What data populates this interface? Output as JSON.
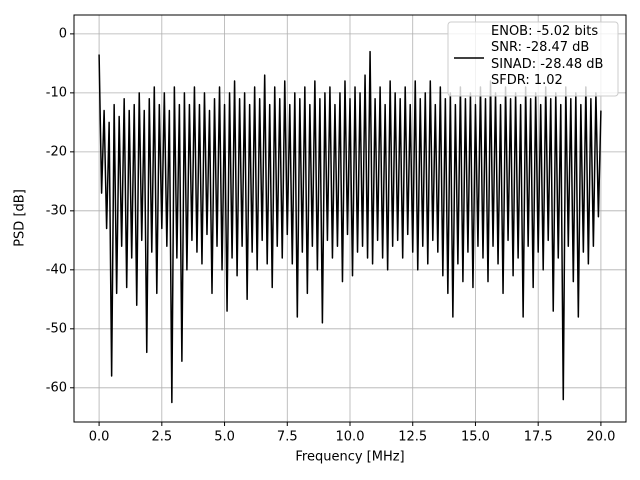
{
  "chart_data": {
    "type": "line",
    "xlabel": "Frequency [MHz]",
    "ylabel": "PSD [dB]",
    "xlim": [
      -1,
      21
    ],
    "ylim": [
      -65.8,
      3.2
    ],
    "xticks": [
      {
        "value": 0,
        "label": "0.0"
      },
      2.5,
      {
        "value": 5,
        "label": "5.0"
      },
      7.5,
      {
        "value": 10,
        "label": "10.0"
      },
      12.5,
      {
        "value": 15,
        "label": "15.0"
      },
      17.5,
      {
        "value": 20,
        "label": "20.0"
      }
    ],
    "yticks": [
      -60,
      -50,
      -40,
      -30,
      -20,
      -10,
      0
    ],
    "grid": true,
    "legend": "upper right",
    "x": [
      0,
      0.1,
      0.2,
      0.3,
      0.4,
      0.5,
      0.6,
      0.7,
      0.8,
      0.9,
      1,
      1.1,
      1.2,
      1.3,
      1.4,
      1.5,
      1.6,
      1.7,
      1.8,
      1.9,
      2,
      2.1,
      2.2,
      2.3,
      2.4,
      2.5,
      2.6,
      2.7,
      2.8,
      2.9,
      3,
      3.1,
      3.2,
      3.3,
      3.4,
      3.5,
      3.6,
      3.7,
      3.8,
      3.9,
      4,
      4.1,
      4.2,
      4.3,
      4.4,
      4.5,
      4.6,
      4.7,
      4.8,
      4.9,
      5,
      5.1,
      5.2,
      5.3,
      5.4,
      5.5,
      5.6,
      5.7,
      5.8,
      5.9,
      6,
      6.1,
      6.2,
      6.3,
      6.4,
      6.5,
      6.6,
      6.7,
      6.8,
      6.9,
      7,
      7.1,
      7.2,
      7.3,
      7.4,
      7.5,
      7.6,
      7.7,
      7.8,
      7.9,
      8,
      8.1,
      8.2,
      8.3,
      8.4,
      8.5,
      8.6,
      8.7,
      8.8,
      8.9,
      9,
      9.1,
      9.2,
      9.3,
      9.4,
      9.5,
      9.6,
      9.7,
      9.8,
      9.9,
      10,
      10.1,
      10.2,
      10.3,
      10.4,
      10.5,
      10.6,
      10.7,
      10.8,
      10.9,
      11,
      11.1,
      11.2,
      11.3,
      11.4,
      11.5,
      11.6,
      11.7,
      11.8,
      11.9,
      12,
      12.1,
      12.2,
      12.3,
      12.4,
      12.5,
      12.6,
      12.7,
      12.8,
      12.9,
      13,
      13.1,
      13.2,
      13.3,
      13.4,
      13.5,
      13.6,
      13.7,
      13.8,
      13.9,
      14,
      14.1,
      14.2,
      14.3,
      14.4,
      14.5,
      14.6,
      14.7,
      14.8,
      14.9,
      15,
      15.1,
      15.2,
      15.3,
      15.4,
      15.5,
      15.6,
      15.7,
      15.8,
      15.9,
      16,
      16.1,
      16.2,
      16.3,
      16.4,
      16.5,
      16.6,
      16.7,
      16.8,
      16.9,
      17,
      17.1,
      17.2,
      17.3,
      17.4,
      17.5,
      17.6,
      17.7,
      17.8,
      17.9,
      18,
      18.1,
      18.2,
      18.3,
      18.4,
      18.5,
      18.6,
      18.7,
      18.8,
      18.9,
      19,
      19.1,
      19.2,
      19.3,
      19.4,
      19.5,
      19.6,
      19.7,
      19.8,
      19.9,
      20
    ],
    "series": [
      {
        "name": "ENOB: -5.02 bits\nSNR: -28.47 dB\nSINAD: -28.48 dB\nSFDR: 1.02",
        "color": "#000000",
        "values": [
          -3.5,
          -27,
          -13,
          -33,
          -15,
          -58,
          -12,
          -44,
          -14,
          -36,
          -11,
          -43,
          -13,
          -38,
          -12,
          -46,
          -10,
          -35,
          -13,
          -54,
          -11,
          -37,
          -9,
          -44,
          -12,
          -33,
          -10,
          -36,
          -13,
          -62.5,
          -9,
          -38,
          -12,
          -55.5,
          -10,
          -40,
          -12,
          -35,
          -9,
          -37,
          -12,
          -39,
          -10,
          -34,
          -13,
          -44,
          -11,
          -36,
          -9,
          -40,
          -12,
          -47,
          -10,
          -38,
          -8,
          -41,
          -11,
          -36,
          -10,
          -45,
          -12,
          -37,
          -9,
          -40,
          -11,
          -35,
          -7,
          -39,
          -12,
          -43,
          -9,
          -36,
          -11,
          -38,
          -8,
          -34,
          -12,
          -39,
          -10,
          -48,
          -11,
          -37,
          -9,
          -44,
          -12,
          -36,
          -8,
          -40,
          -11,
          -49,
          -10,
          -35,
          -9,
          -38,
          -12,
          -36,
          -10,
          -42,
          -8,
          -34,
          -11,
          -41,
          -9,
          -37,
          -10,
          -36,
          -7,
          -38,
          -3,
          -39,
          -11,
          -35,
          -9,
          -38,
          -12,
          -40,
          -8,
          -36,
          -10,
          -35,
          -11,
          -38,
          -9,
          -34,
          -12,
          -37,
          -8,
          -40,
          -11,
          -36,
          -10,
          -39,
          -8,
          -35,
          -12,
          -37,
          -9,
          -41,
          -11,
          -44,
          -10,
          -48,
          -12,
          -39,
          -9,
          -42,
          -11,
          -37,
          -10,
          -43,
          -12,
          -36,
          -9,
          -38,
          -11,
          -42,
          -8,
          -36,
          -10,
          -39,
          -12,
          -44,
          -9,
          -35,
          -11,
          -41,
          -10,
          -38,
          -12,
          -48,
          -9,
          -36,
          -11,
          -43,
          -10,
          -37,
          -12,
          -40,
          -9,
          -35,
          -11,
          -47,
          -10,
          -38,
          -12,
          -62,
          -9,
          -36,
          -11,
          -42,
          -10,
          -48,
          -12,
          -37,
          -9,
          -39,
          -11,
          -36,
          -10,
          -31,
          -13
        ]
      }
    ]
  }
}
